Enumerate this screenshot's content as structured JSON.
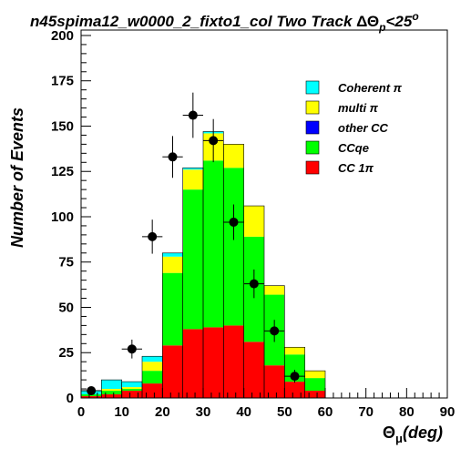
{
  "chart_data": {
    "type": "bar",
    "stacked": true,
    "title_main": "n45spima12_w0000_2_fixto1_col Two Track ",
    "title_delta": "ΔΘ",
    "title_sub": "p",
    "title_tail": "<25",
    "title_sup": "o",
    "ylabel": "Number of Events",
    "xlabel_theta": "Θ",
    "xlabel_mu": "μ",
    "xlabel_tail": "(deg)",
    "xlim": [
      0,
      90
    ],
    "ylim": [
      0,
      203
    ],
    "x_ticks": [
      0,
      10,
      20,
      30,
      40,
      50,
      60,
      70,
      80,
      90
    ],
    "y_ticks": [
      0,
      25,
      50,
      75,
      100,
      125,
      150,
      175,
      200
    ],
    "grid": false,
    "legend_position": "top-right",
    "bin_edges": [
      0,
      5,
      10,
      15,
      20,
      25,
      30,
      35,
      40,
      45,
      50,
      55,
      60
    ],
    "series": [
      {
        "name": "CC 1π",
        "color": "#ff0000",
        "values": [
          1,
          2,
          4,
          8,
          29,
          38,
          39,
          40,
          31,
          18,
          9,
          4
        ]
      },
      {
        "name": "CCqe",
        "color": "#00ff00",
        "values": [
          1,
          2,
          1,
          7,
          40,
          77,
          92,
          87,
          58,
          39,
          15,
          7
        ]
      },
      {
        "name": "other CC",
        "color": "#0000ff",
        "values": [
          0,
          0,
          0,
          0,
          0,
          0,
          0,
          0,
          0,
          0,
          0,
          0
        ]
      },
      {
        "name": "multi π",
        "color": "#ffff00",
        "values": [
          0,
          1,
          1,
          5,
          9,
          11,
          15,
          13,
          17,
          5,
          4,
          4
        ]
      },
      {
        "name": "Coherent π",
        "color": "#00ffff",
        "values": [
          2,
          5,
          3,
          3,
          2,
          1,
          1,
          0,
          0,
          0,
          0,
          0
        ]
      }
    ],
    "legend": [
      {
        "name": "Coherent π",
        "color": "#00ffff"
      },
      {
        "name": "multi π",
        "color": "#ffff00"
      },
      {
        "name": "other CC",
        "color": "#0000ff"
      },
      {
        "name": "CCqe",
        "color": "#00ff00"
      },
      {
        "name": "CC 1π",
        "color": "#ff0000"
      }
    ],
    "data_points": [
      {
        "x": 2.5,
        "y": 4,
        "yerr": 2
      },
      {
        "x": 12.5,
        "y": 27,
        "yerr": 5.2
      },
      {
        "x": 17.5,
        "y": 89,
        "yerr": 9.4
      },
      {
        "x": 22.5,
        "y": 133,
        "yerr": 11.5
      },
      {
        "x": 27.5,
        "y": 156,
        "yerr": 12.5
      },
      {
        "x": 32.5,
        "y": 142,
        "yerr": 11.9
      },
      {
        "x": 37.5,
        "y": 97,
        "yerr": 9.8
      },
      {
        "x": 42.5,
        "y": 63,
        "yerr": 7.9
      },
      {
        "x": 47.5,
        "y": 37,
        "yerr": 6.1
      },
      {
        "x": 52.5,
        "y": 12,
        "yerr": 3.5
      }
    ]
  }
}
